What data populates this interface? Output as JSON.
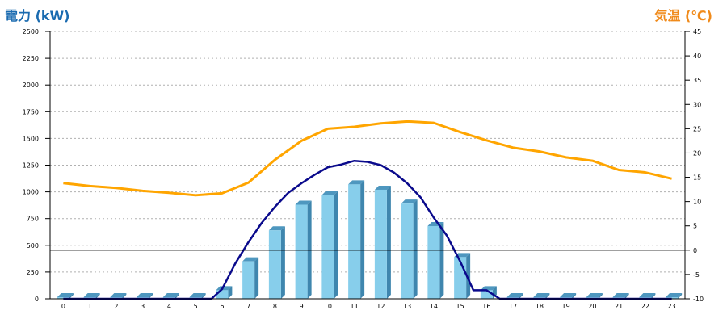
{
  "chart_data": {
    "type": "bar",
    "y_left_label": "電力 (kW)",
    "y_right_label": "気温 (℃)",
    "categories": [
      "0",
      "1",
      "2",
      "3",
      "4",
      "5",
      "6",
      "7",
      "8",
      "9",
      "10",
      "11",
      "12",
      "13",
      "14",
      "15",
      "16",
      "17",
      "18",
      "19",
      "20",
      "21",
      "22",
      "23"
    ],
    "y_left_ticks": [
      "0",
      "250",
      "500",
      "750",
      "1000",
      "1250",
      "1500",
      "1750",
      "2000",
      "2250",
      "2500"
    ],
    "y_right_ticks": [
      "-10",
      "-5",
      "0",
      "5",
      "10",
      "15",
      "20",
      "25",
      "30",
      "35",
      "40",
      "45"
    ],
    "ylim_left": [
      0,
      2500
    ],
    "ylim_right": [
      -10,
      45
    ],
    "grid": true,
    "bars": {
      "axis": "left",
      "color": "#87ceeb",
      "values": [
        0,
        0,
        0,
        0,
        0,
        0,
        80,
        350,
        640,
        880,
        970,
        1070,
        1020,
        890,
        680,
        390,
        80,
        0,
        0,
        0,
        0,
        0,
        0,
        0
      ]
    },
    "power_line": {
      "axis": "left",
      "color": "#0a0a8c",
      "x": [
        0,
        1,
        2,
        3,
        4,
        5,
        5.6,
        6,
        6.5,
        7,
        7.5,
        8,
        8.5,
        9,
        9.5,
        10,
        10.5,
        11,
        11.5,
        12,
        12.5,
        13,
        13.5,
        14,
        14.5,
        15,
        15.5,
        16,
        16.5,
        17,
        18,
        19,
        20,
        21,
        22,
        23
      ],
      "y": [
        0,
        0,
        0,
        0,
        0,
        0,
        0,
        90,
        330,
        530,
        710,
        860,
        990,
        1080,
        1160,
        1230,
        1255,
        1290,
        1280,
        1250,
        1180,
        1080,
        950,
        760,
        590,
        350,
        80,
        80,
        0,
        0,
        0,
        0,
        0,
        0,
        0,
        0
      ]
    },
    "temp_line": {
      "axis": "right",
      "color": "#ffa500",
      "x": [
        0,
        1,
        2,
        3,
        4,
        5,
        6,
        7,
        8,
        9,
        10,
        11,
        12,
        13,
        14,
        15,
        16,
        17,
        18,
        19,
        20,
        21,
        22,
        23
      ],
      "y": [
        13.8,
        13.2,
        12.8,
        12.2,
        11.8,
        11.3,
        11.7,
        13.9,
        18.6,
        22.5,
        25.0,
        25.4,
        26.1,
        26.5,
        26.2,
        24.3,
        22.6,
        21.1,
        20.3,
        19.1,
        18.4,
        16.5,
        16.0,
        14.7
      ]
    },
    "zero_line_value_right": 0
  }
}
